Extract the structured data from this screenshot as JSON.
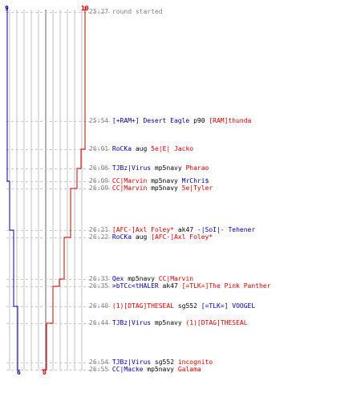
{
  "scores": {
    "blue_start": "9",
    "red_start": "10",
    "blue_end": "6",
    "red_end": "0"
  },
  "colors": {
    "blue_team": "#000099",
    "red_team": "#cc0000",
    "grid": "#c0c0c0",
    "dashed": "#c8c8c8",
    "time": "#808080"
  },
  "events": [
    {
      "time": "25:27",
      "message": "round started"
    },
    {
      "time": "25:54",
      "killer": "[+RAM+] Desert Eagle",
      "killer_team": "blue",
      "weapon": "p90",
      "victim": "[RAM]thunda",
      "victim_team": "red"
    },
    {
      "time": "26:01",
      "killer": "RoCKa",
      "killer_team": "blue",
      "weapon": "aug",
      "victim": "5e|E| Jacko",
      "victim_team": "red"
    },
    {
      "time": "26:06",
      "killer": "TJBz|Virus",
      "killer_team": "blue",
      "weapon": "mp5navy",
      "victim": "Pharao",
      "victim_team": "red"
    },
    {
      "time": "26:09",
      "killer": "CC|Marvin",
      "killer_team": "red",
      "weapon": "mp5navy",
      "victim": "MrChri$",
      "victim_team": "blue"
    },
    {
      "time": "26:09",
      "killer": "CC|Marvin",
      "killer_team": "red",
      "weapon": "mp5navy",
      "victim": "5e|Tyler",
      "victim_team": "red"
    },
    {
      "time": "26:21",
      "killer": "[AFC-]Axl Foley*",
      "killer_team": "red",
      "weapon": "ak47",
      "victim": "-|SoI|- Tehener",
      "victim_team": "blue"
    },
    {
      "time": "26:22",
      "killer": "RoCKa",
      "killer_team": "blue",
      "weapon": "aug",
      "victim": "[AFC-]Axl Foley*",
      "victim_team": "red"
    },
    {
      "time": "26:33",
      "killer": "Qex",
      "killer_team": "blue",
      "weapon": "mp5navy",
      "victim": "CC|Marvin",
      "victim_team": "red"
    },
    {
      "time": "26:35",
      "killer": ">bTCc<tHALER",
      "killer_team": "blue",
      "weapon": "ak47",
      "victim": "[=TLK=]The Pink Panther",
      "victim_team": "red"
    },
    {
      "time": "26:40",
      "killer": "(1)[DTAG]THESEAL",
      "killer_team": "red",
      "weapon": "sg552",
      "victim": "[=TLK=] VOOGEL",
      "victim_team": "blue"
    },
    {
      "time": "26:44",
      "killer": "TJBz|Virus",
      "killer_team": "blue",
      "weapon": "mp5navy",
      "victim": "(1)[DTAG]THESEAL",
      "victim_team": "red"
    },
    {
      "time": "26:54",
      "killer": "TJBz|Virus",
      "killer_team": "blue",
      "weapon": "sg552",
      "victim": "incognito",
      "victim_team": "red"
    },
    {
      "time": "26:55",
      "killer": "CC|Macke",
      "killer_team": "blue",
      "weapon": "mp5navy",
      "victim": "Galama",
      "victim_team": "red"
    }
  ]
}
